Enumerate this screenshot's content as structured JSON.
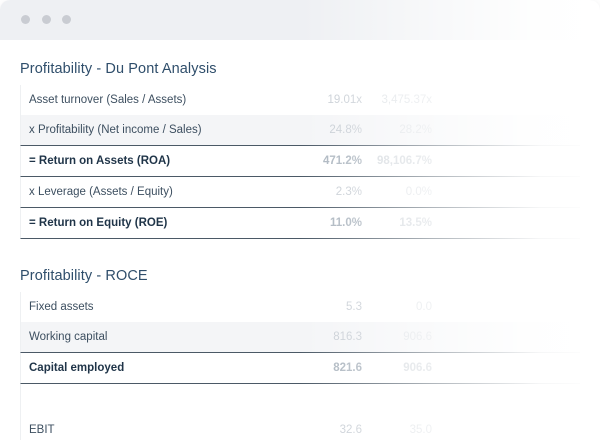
{
  "window": {
    "controls": [
      "close",
      "minimize",
      "maximize"
    ]
  },
  "dupont": {
    "title": "Profitability - Du Pont Analysis",
    "rows": [
      {
        "label": "Asset turnover (Sales / Assets)",
        "v1": "19.01x",
        "v2": "3,475.37x"
      },
      {
        "label": "x Profitability (Net income / Sales)",
        "v1": "24.8%",
        "v2": "28.2%"
      },
      {
        "label": "= Return on Assets (ROA)",
        "v1": "471.2%",
        "v2": "98,106.7%"
      },
      {
        "label": "x Leverage (Assets / Equity)",
        "v1": "2.3%",
        "v2": "0.0%"
      },
      {
        "label": "= Return on Equity (ROE)",
        "v1": "11.0%",
        "v2": "13.5%"
      }
    ]
  },
  "roce": {
    "title": "Profitability - ROCE",
    "rows": [
      {
        "label": "Fixed assets",
        "v1": "5.3",
        "v2": "0.0"
      },
      {
        "label": "Working capital",
        "v1": "816.3",
        "v2": "906.6"
      },
      {
        "label": "Capital employed",
        "v1": "821.6",
        "v2": "906.6"
      },
      {
        "label": "",
        "v1": "",
        "v2": ""
      },
      {
        "label": "EBIT",
        "v1": "32.6",
        "v2": "35.0"
      }
    ]
  }
}
